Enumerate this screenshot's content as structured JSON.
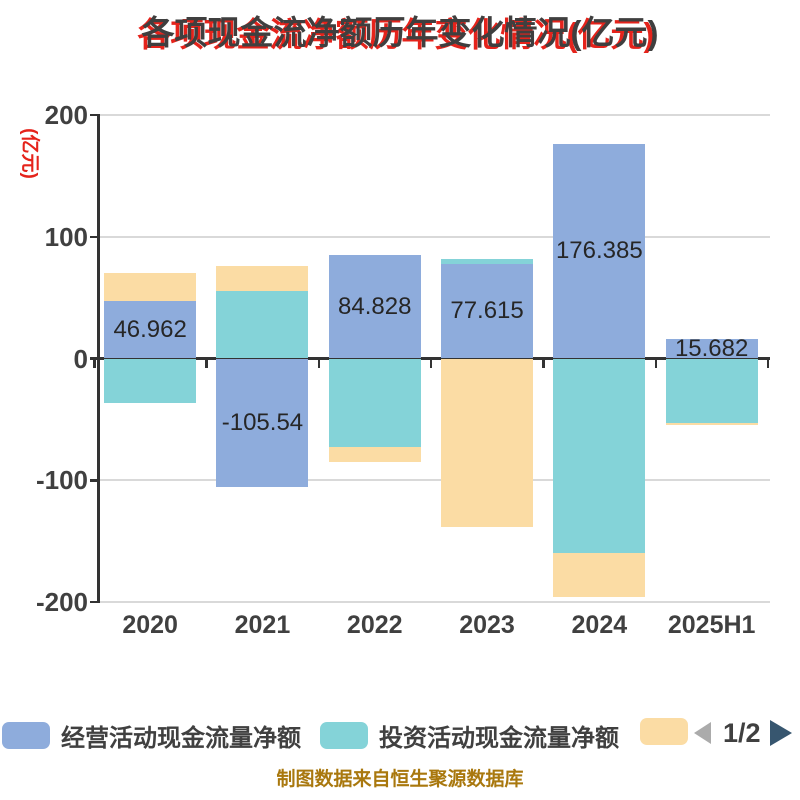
{
  "title": "各项现金流净额历年变化情况(亿元)",
  "y_axis": {
    "unit_label": "(亿元)"
  },
  "footer": "制图数据来自恒生聚源数据库",
  "legend": {
    "items": [
      {
        "label": "经营活动现金流量净额",
        "color": "#8EACDC"
      },
      {
        "label": "投资活动现金流量净额",
        "color": "#84D3D8"
      },
      {
        "label": "",
        "color": "#FBDCA4"
      }
    ],
    "pager": {
      "prev_icon": "left-arrow",
      "text": "1/2",
      "next_icon": "right-arrow",
      "prev_color": "#ABABAB",
      "next_color": "#37566F"
    }
  },
  "colors": {
    "accent_red": "#E5231B",
    "title_text": "#3F3F3F",
    "footer_text": "#A9780E",
    "axis": "#333333",
    "grid": "#D9D9D9",
    "tick_text": "#404040"
  },
  "chart_data": {
    "type": "bar",
    "stacked": true,
    "title": "各项现金流净额历年变化情况(亿元)",
    "categories": [
      "2020",
      "2021",
      "2022",
      "2023",
      "2024",
      "2025H1"
    ],
    "series": [
      {
        "name": "经营活动现金流量净额",
        "color": "#8EACDC",
        "values": [
          46.962,
          -105.54,
          84.828,
          77.615,
          176.385,
          15.682
        ]
      },
      {
        "name": "投资活动现金流量净额",
        "color": "#84D3D8",
        "values": [
          -36.7,
          55.5,
          -72.5,
          4.0,
          -160.0,
          -53.0
        ]
      },
      {
        "name": "",
        "color": "#FBDCA4",
        "values": [
          23.3,
          20.4,
          -12.5,
          -138.0,
          -36.0,
          -1.5
        ]
      }
    ],
    "data_labels": [
      "46.962",
      "-105.54",
      "84.828",
      "77.615",
      "176.385",
      "15.682"
    ],
    "xlabel": "",
    "ylabel": "(亿元)",
    "ylim": [
      -200,
      200
    ],
    "y_ticks": [
      200,
      100,
      0,
      -100,
      -200
    ],
    "grid": true,
    "legend_position": "bottom"
  }
}
